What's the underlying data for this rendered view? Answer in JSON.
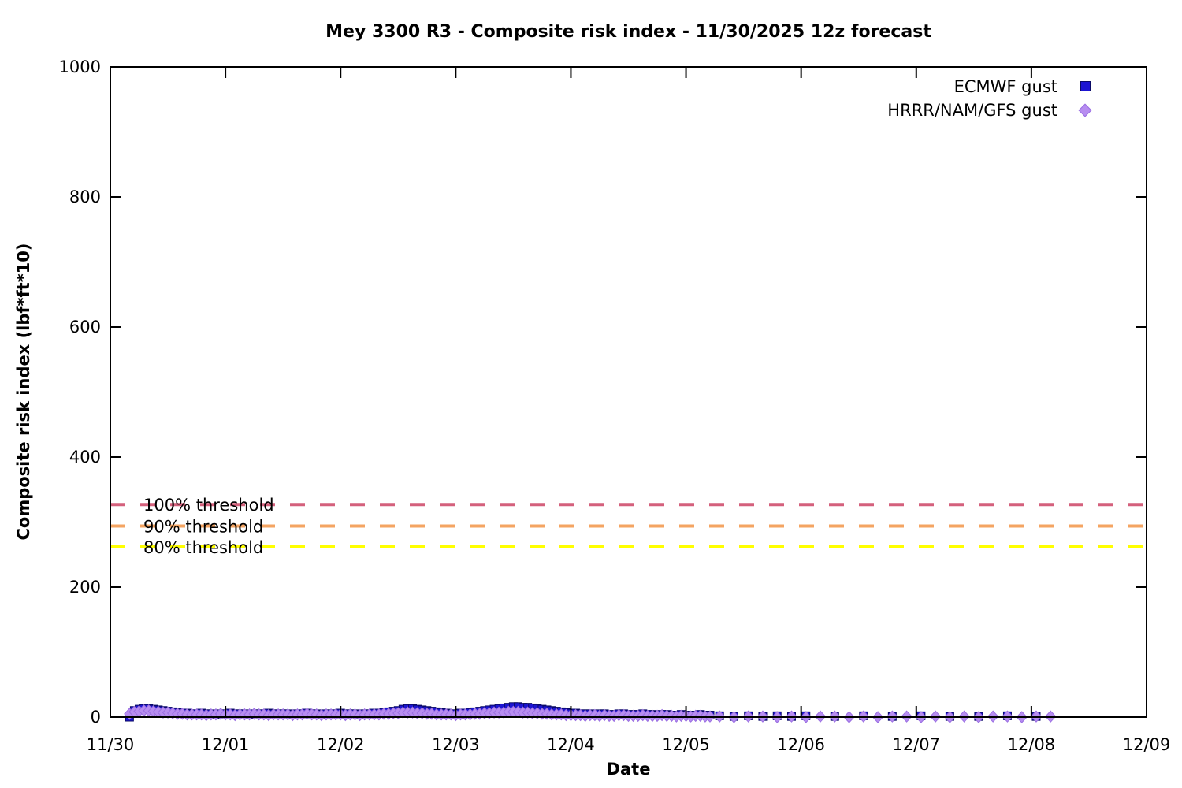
{
  "chart_data": {
    "type": "scatter",
    "title": "Mey 3300 R3 - Composite risk index - 11/30/2025 12z forecast",
    "xlabel": "Date",
    "ylabel": "Composite risk index (lbf*ft*10)",
    "x_tick_labels": [
      "11/30",
      "12/01",
      "12/02",
      "12/03",
      "12/04",
      "12/05",
      "12/06",
      "12/07",
      "12/08",
      "12/09"
    ],
    "x_unit": "hours after 11/30 00:00, axis spans 0-216 h (9 days)",
    "ylim": [
      0,
      1000
    ],
    "y_ticks": [
      0,
      200,
      400,
      600,
      800,
      1000
    ],
    "grid": false,
    "legend_position": "top-right",
    "thresholds": [
      {
        "label": "100% threshold",
        "value": 327,
        "color": "#d4607c"
      },
      {
        "label": "90% threshold",
        "value": 294,
        "color": "#f4a462"
      },
      {
        "label": "80% threshold",
        "value": 262,
        "color": "#ffff00"
      }
    ],
    "series": [
      {
        "name": "ECMWF gust",
        "marker": "square",
        "color": "#1c14d2",
        "segments": [
          {
            "start_hour": 4,
            "step_hours": 1,
            "values": [
              0,
              10,
              12,
              13,
              13,
              12,
              11,
              10,
              9,
              8,
              7,
              6,
              6,
              5,
              5,
              6,
              5,
              5,
              4,
              5,
              5,
              6,
              5,
              5,
              5,
              4,
              5,
              5,
              5,
              6,
              5,
              5,
              5,
              5,
              4,
              5,
              5,
              6,
              5,
              5,
              4,
              5,
              5,
              5,
              6,
              5,
              5,
              5,
              4,
              5,
              5,
              6,
              6,
              7,
              8,
              9,
              10,
              12,
              13,
              13,
              12,
              11,
              10,
              9,
              8,
              7,
              6,
              5,
              5,
              6,
              6,
              7,
              8,
              9,
              10,
              11,
              12,
              13,
              14,
              15,
              16,
              16,
              15,
              15,
              14,
              13,
              12,
              11,
              10,
              9,
              8,
              7,
              6,
              6,
              5,
              5,
              5,
              4,
              5,
              5,
              4,
              4,
              5,
              5,
              4,
              4,
              4,
              5,
              4,
              4,
              3,
              4,
              4,
              3,
              3,
              4,
              3,
              3,
              3,
              4,
              3,
              3
            ]
          },
          {
            "start_hour": 127,
            "step_hours": 3,
            "values": [
              2,
              1,
              2,
              1,
              2,
              1,
              2
            ]
          },
          {
            "start_hour": 151,
            "step_hours": 6,
            "values": [
              1,
              2,
              1,
              2,
              1,
              1,
              2,
              1
            ]
          }
        ]
      },
      {
        "name": "HRRR/NAM/GFS gust",
        "marker": "diamond",
        "color": "#b78df0",
        "segments": [
          {
            "start_hour": 4,
            "step_hours": 1,
            "values": [
              5,
              8,
              9,
              10,
              10,
              9,
              8,
              7,
              7,
              6,
              5,
              5,
              4,
              4,
              4,
              4,
              3,
              4,
              4,
              5,
              4,
              4,
              3,
              4,
              4,
              4,
              5,
              4,
              4,
              3,
              4,
              4,
              4,
              4,
              3,
              4,
              4,
              5,
              4,
              4,
              3,
              4,
              4,
              4,
              4,
              3,
              4,
              4,
              3,
              4,
              4,
              4,
              4,
              5,
              5,
              6,
              6,
              7,
              7,
              7,
              6,
              6,
              5,
              5,
              4,
              4,
              4,
              4,
              3,
              4,
              4,
              4,
              5,
              5,
              6,
              6,
              7,
              7,
              7,
              8,
              8,
              8,
              7,
              7,
              6,
              6,
              5,
              5,
              4,
              4,
              4,
              3,
              3,
              3,
              3,
              2,
              3,
              3,
              2,
              3,
              2,
              2,
              3,
              3,
              2,
              2,
              2,
              3,
              2,
              2,
              2,
              3,
              2,
              2,
              1,
              2,
              2,
              1,
              2,
              2,
              1,
              1
            ]
          },
          {
            "start_hour": 127,
            "step_hours": 3,
            "values": [
              1,
              0,
              1,
              1,
              0,
              1,
              0,
              1,
              1,
              0,
              1,
              0,
              1,
              1,
              0,
              1,
              0,
              1,
              0,
              1,
              1,
              0,
              1,
              1
            ]
          }
        ]
      }
    ]
  }
}
